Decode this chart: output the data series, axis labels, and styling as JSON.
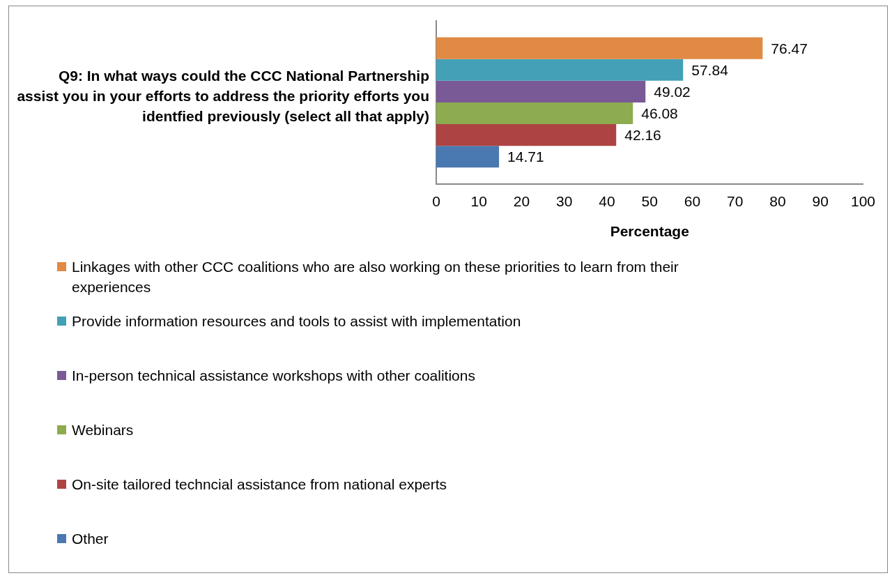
{
  "chart_data": {
    "type": "bar",
    "orientation": "horizontal",
    "title": "Q9: In what ways could the CCC National Partnership assist you in your efforts to address the priority efforts you identfied previously (select all that apply)",
    "xlabel": "Percentage",
    "categories": [
      null
    ],
    "series": [
      {
        "name": "Linkages with other CCC coalitions who are also working on these priorities to learn from their experiences",
        "color": "#e08a43",
        "values": [
          76.47
        ]
      },
      {
        "name": "Provide information resources and tools to assist with implementation",
        "color": "#43a0b6",
        "values": [
          57.84
        ]
      },
      {
        "name": "In-person technical assistance workshops with other coalitions",
        "color": "#7a5a96",
        "values": [
          49.02
        ]
      },
      {
        "name": "Webinars",
        "color": "#8dab4f",
        "values": [
          46.08
        ]
      },
      {
        "name": "On-site tailored techncial assistance from national experts",
        "color": "#ad4443",
        "values": [
          42.16
        ]
      },
      {
        "name": "Other",
        "color": "#4a78b0",
        "values": [
          14.71
        ]
      }
    ],
    "xlim": [
      0,
      100
    ],
    "xticks": [
      0,
      10,
      20,
      30,
      40,
      50,
      60,
      70,
      80,
      90,
      100
    ],
    "grid": false,
    "legend": "bottom",
    "data_labels": true
  }
}
